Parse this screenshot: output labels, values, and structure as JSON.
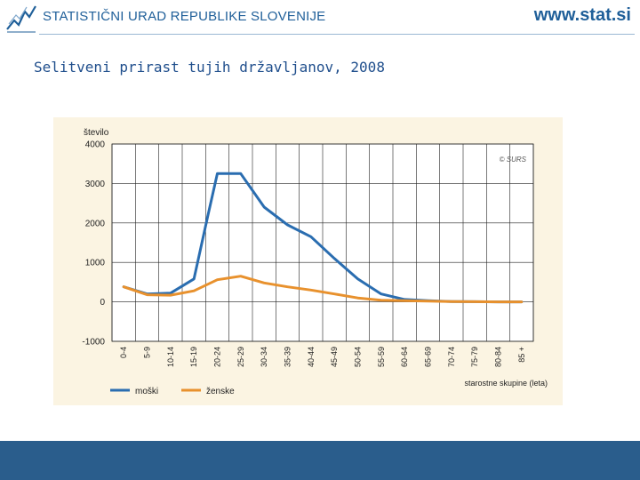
{
  "header": {
    "org_name": "STATISTIČNI URAD REPUBLIKE SLOVENIJE",
    "website": "www.stat.si"
  },
  "slide": {
    "title": "Selitveni prirast tujih državljanov, 2008"
  },
  "chart_data": {
    "type": "line",
    "title": "",
    "ylabel": "število",
    "xlabel": "starostne skupine (leta)",
    "source_note": "© SURS",
    "ylim": [
      -1000,
      4000
    ],
    "yticks": [
      4000,
      3000,
      2000,
      1000,
      0,
      -1000
    ],
    "grid": true,
    "legend_position": "bottom-left",
    "categories": [
      "0-4",
      "5-9",
      "10-14",
      "15-19",
      "20-24",
      "25-29",
      "30-34",
      "35-39",
      "40-44",
      "45-49",
      "50-54",
      "55-59",
      "60-64",
      "65-69",
      "70-74",
      "75-79",
      "80-84",
      "85 +"
    ],
    "series": [
      {
        "name": "moški",
        "color": "#2a6db0",
        "points": [
          {
            "x": 0,
            "y": 380
          },
          {
            "x": 1,
            "y": 200
          },
          {
            "x": 2,
            "y": 220
          },
          {
            "x": 3,
            "y": 580
          },
          {
            "x": 3.6,
            "y": 2200
          },
          {
            "x": 4,
            "y": 3250
          },
          {
            "x": 5,
            "y": 3250
          },
          {
            "x": 6,
            "y": 2400
          },
          {
            "x": 7,
            "y": 1950
          },
          {
            "x": 8,
            "y": 1650
          },
          {
            "x": 9,
            "y": 1100
          },
          {
            "x": 10,
            "y": 580
          },
          {
            "x": 11,
            "y": 200
          },
          {
            "x": 12,
            "y": 60
          },
          {
            "x": 13,
            "y": 30
          },
          {
            "x": 14,
            "y": 10
          },
          {
            "x": 15,
            "y": 5
          },
          {
            "x": 16,
            "y": 0
          },
          {
            "x": 17,
            "y": 0
          }
        ]
      },
      {
        "name": "ženske",
        "color": "#e8912d",
        "points": [
          {
            "x": 0,
            "y": 380
          },
          {
            "x": 1,
            "y": 180
          },
          {
            "x": 2,
            "y": 170
          },
          {
            "x": 3,
            "y": 280
          },
          {
            "x": 4,
            "y": 560
          },
          {
            "x": 5,
            "y": 650
          },
          {
            "x": 6,
            "y": 480
          },
          {
            "x": 7,
            "y": 380
          },
          {
            "x": 8,
            "y": 300
          },
          {
            "x": 9,
            "y": 200
          },
          {
            "x": 10,
            "y": 100
          },
          {
            "x": 11,
            "y": 40
          },
          {
            "x": 12,
            "y": 30
          },
          {
            "x": 13,
            "y": 20
          },
          {
            "x": 14,
            "y": 10
          },
          {
            "x": 15,
            "y": 5
          },
          {
            "x": 16,
            "y": 0
          },
          {
            "x": 17,
            "y": 0
          }
        ]
      }
    ]
  }
}
